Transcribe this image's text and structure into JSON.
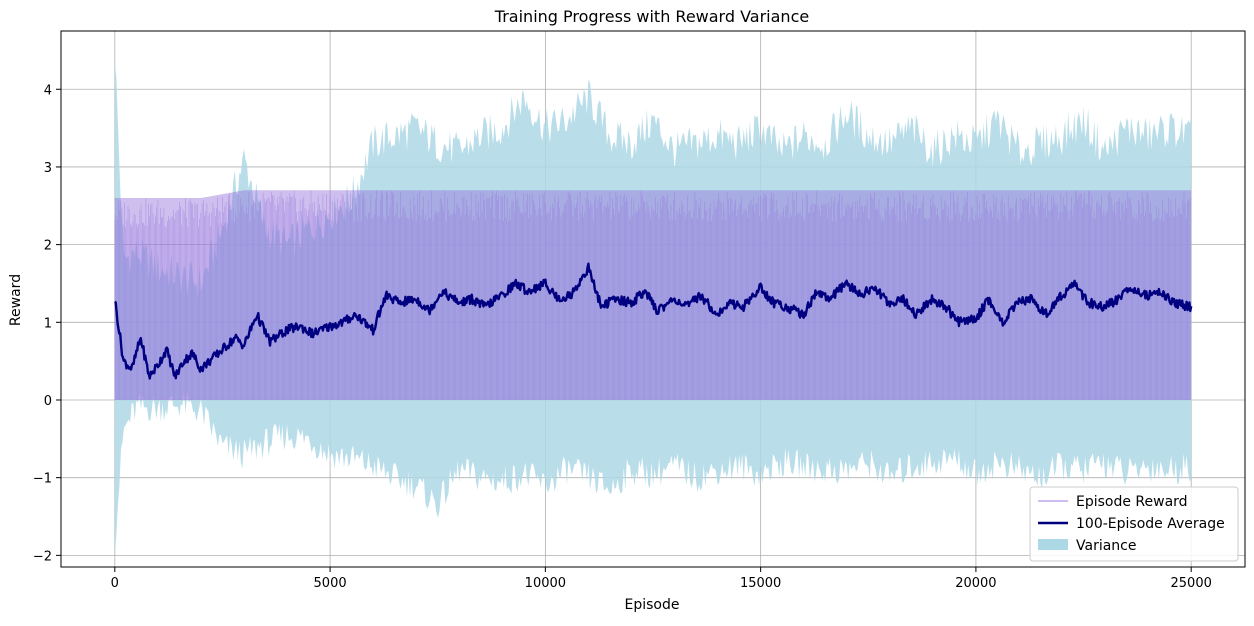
{
  "chart_data": {
    "type": "line",
    "title": "Training Progress with Reward Variance",
    "xlabel": "Episode",
    "ylabel": "Reward",
    "xlim": [
      -1250,
      26250
    ],
    "ylim": [
      -2.15,
      4.75
    ],
    "xticks": [
      0,
      5000,
      10000,
      15000,
      20000,
      25000
    ],
    "yticks": [
      -2,
      -1,
      0,
      1,
      2,
      3,
      4
    ],
    "grid": true,
    "legend_position": "bottom-right",
    "colors": {
      "episode_reward": "#9370DB",
      "average": "#000080",
      "variance": "#ADD8E6"
    },
    "series": [
      {
        "name": "Episode Reward",
        "kind": "line",
        "low": 0,
        "high_values_x": [
          0,
          1000,
          2000,
          2500,
          3000,
          5000,
          25000
        ],
        "high_values_y": [
          2.6,
          2.6,
          2.6,
          2.65,
          2.7,
          2.7,
          2.7
        ]
      },
      {
        "name": "100-Episode Average",
        "kind": "line",
        "x": [
          0,
          200,
          400,
          600,
          800,
          1000,
          1200,
          1400,
          1600,
          1800,
          2000,
          2200,
          2500,
          2800,
          3000,
          3300,
          3600,
          4000,
          4300,
          4600,
          5000,
          5300,
          5600,
          6000,
          6300,
          6600,
          7000,
          7300,
          7600,
          8000,
          8300,
          8600,
          9000,
          9300,
          9600,
          10000,
          10300,
          10600,
          11000,
          11300,
          11600,
          12000,
          12300,
          12600,
          13000,
          13300,
          13600,
          14000,
          14300,
          14600,
          15000,
          15300,
          15600,
          16000,
          16300,
          16600,
          17000,
          17300,
          17600,
          18000,
          18300,
          18600,
          19000,
          19300,
          19600,
          20000,
          20300,
          20600,
          21000,
          21300,
          21600,
          22000,
          22300,
          22600,
          23000,
          23300,
          23600,
          24000,
          24300,
          24600,
          25000
        ],
        "values": [
          1.3,
          0.5,
          0.4,
          0.8,
          0.3,
          0.45,
          0.65,
          0.3,
          0.5,
          0.6,
          0.4,
          0.5,
          0.65,
          0.8,
          0.7,
          1.1,
          0.75,
          0.9,
          0.95,
          0.85,
          0.95,
          1.0,
          1.1,
          0.9,
          1.35,
          1.25,
          1.3,
          1.15,
          1.4,
          1.25,
          1.3,
          1.2,
          1.35,
          1.5,
          1.4,
          1.5,
          1.3,
          1.35,
          1.7,
          1.2,
          1.3,
          1.25,
          1.4,
          1.15,
          1.3,
          1.2,
          1.35,
          1.1,
          1.25,
          1.2,
          1.45,
          1.25,
          1.2,
          1.1,
          1.4,
          1.3,
          1.5,
          1.35,
          1.45,
          1.25,
          1.3,
          1.1,
          1.3,
          1.2,
          1.0,
          1.05,
          1.3,
          1.0,
          1.25,
          1.3,
          1.1,
          1.35,
          1.5,
          1.25,
          1.2,
          1.3,
          1.45,
          1.35,
          1.4,
          1.25,
          1.2
        ]
      },
      {
        "name": "Variance",
        "kind": "band",
        "x": [
          0,
          200,
          500,
          1000,
          1500,
          2000,
          2500,
          3000,
          3500,
          4000,
          4500,
          5000,
          5500,
          6000,
          6500,
          7000,
          7500,
          8000,
          8500,
          9000,
          9500,
          10000,
          10500,
          11000,
          11500,
          12000,
          12500,
          13000,
          13500,
          14000,
          14500,
          15000,
          15500,
          16000,
          16500,
          17000,
          17500,
          18000,
          18500,
          19000,
          19500,
          20000,
          20500,
          21000,
          21500,
          22000,
          22500,
          23000,
          23500,
          24000,
          24500,
          25000
        ],
        "upper": [
          4.5,
          1.8,
          1.9,
          1.7,
          1.6,
          1.5,
          2.2,
          3.1,
          2.2,
          2.0,
          2.2,
          2.4,
          2.6,
          3.3,
          3.4,
          3.5,
          3.3,
          3.2,
          3.4,
          3.5,
          3.9,
          3.5,
          3.6,
          3.9,
          3.4,
          3.3,
          3.6,
          3.2,
          3.3,
          3.4,
          3.3,
          3.5,
          3.2,
          3.4,
          3.3,
          3.7,
          3.4,
          3.3,
          3.5,
          3.2,
          3.4,
          3.3,
          3.6,
          3.2,
          3.3,
          3.4,
          3.6,
          3.2,
          3.5,
          3.4,
          3.5,
          3.4
        ],
        "lower": [
          -1.8,
          -0.4,
          -0.1,
          -0.1,
          -0.05,
          -0.15,
          -0.6,
          -0.7,
          -0.55,
          -0.45,
          -0.5,
          -0.7,
          -0.75,
          -0.85,
          -1.0,
          -1.1,
          -1.35,
          -0.9,
          -1.0,
          -1.05,
          -0.95,
          -1.1,
          -0.9,
          -1.0,
          -1.15,
          -0.9,
          -0.95,
          -0.85,
          -1.0,
          -0.9,
          -0.85,
          -0.95,
          -0.8,
          -0.85,
          -0.9,
          -0.9,
          -0.8,
          -1.0,
          -0.85,
          -0.8,
          -0.75,
          -0.95,
          -0.8,
          -0.9,
          -1.0,
          -0.85,
          -0.9,
          -0.8,
          -0.95,
          -0.85,
          -0.9,
          -0.85
        ]
      }
    ],
    "legend_entries": [
      "Episode Reward",
      "100-Episode Average",
      "Variance"
    ]
  }
}
